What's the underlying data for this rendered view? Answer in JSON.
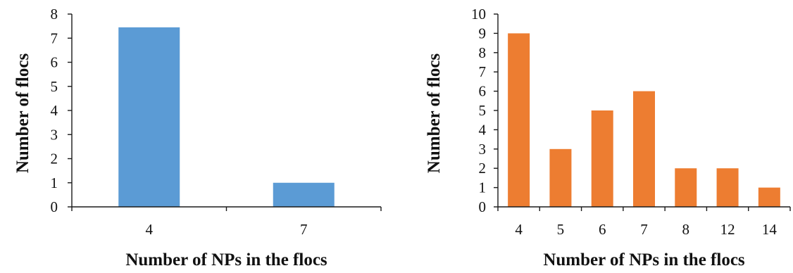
{
  "chart_data": [
    {
      "type": "bar",
      "categories": [
        "4",
        "7"
      ],
      "values": [
        7.45,
        1
      ],
      "xlabel": "Number of NPs in the flocs",
      "ylabel": "Number of flocs",
      "ylim": [
        0,
        8
      ],
      "yticks": [
        "0",
        "1",
        "2",
        "3",
        "4",
        "5",
        "6",
        "7",
        "8"
      ],
      "grid": false,
      "color": "#5b9bd5"
    },
    {
      "type": "bar",
      "categories": [
        "4",
        "5",
        "6",
        "7",
        "8",
        "12",
        "14"
      ],
      "values": [
        9,
        3,
        5,
        6,
        2,
        2,
        1
      ],
      "xlabel": "Number of NPs in the flocs",
      "ylabel": "Number of flocs",
      "ylim": [
        0,
        10
      ],
      "yticks": [
        "0",
        "1",
        "2",
        "3",
        "4",
        "5",
        "6",
        "7",
        "8",
        "9",
        "10"
      ],
      "grid": false,
      "color": "#ed7d31"
    }
  ]
}
